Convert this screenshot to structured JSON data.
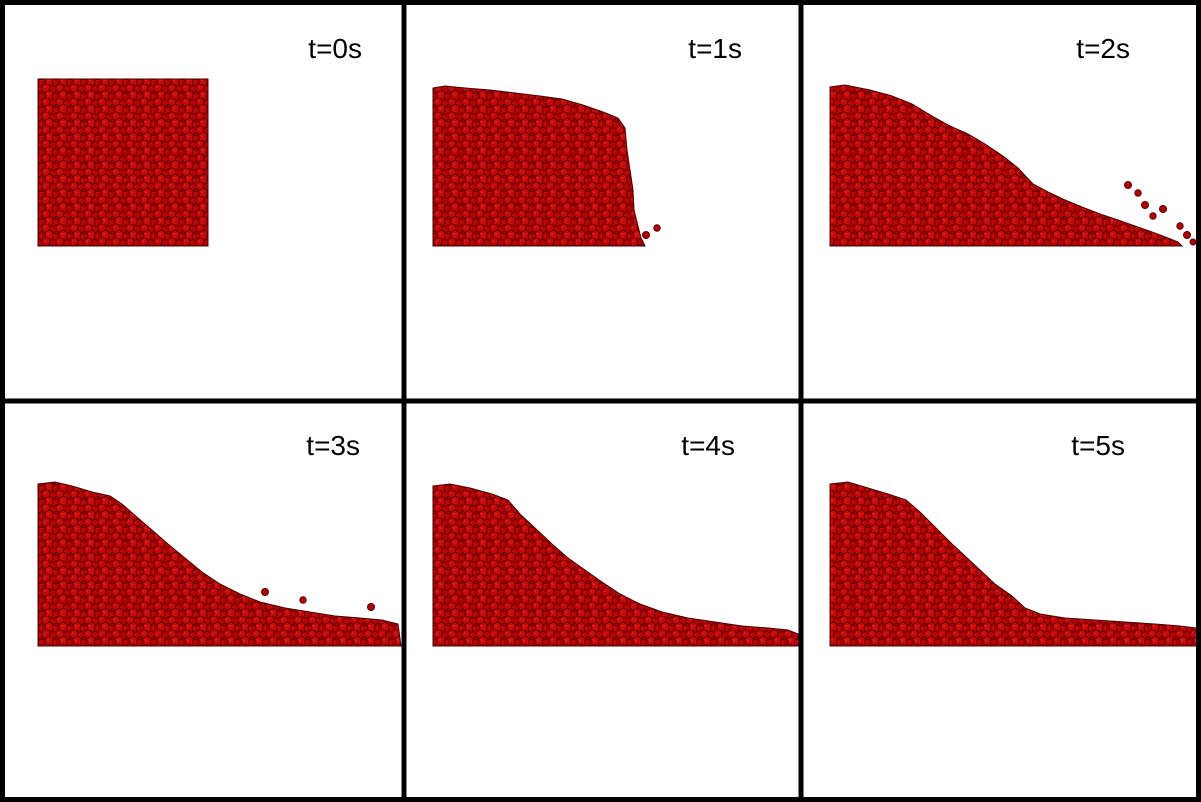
{
  "colors": {
    "particle_fill": "#b00000",
    "particle_edge": "#5a0000",
    "particle_highlight": "#e01a1a",
    "border": "#000000",
    "background": "#ffffff"
  },
  "frames": [
    {
      "label": "t=0s"
    },
    {
      "label": "t=1s"
    },
    {
      "label": "t=2s"
    },
    {
      "label": "t=3s"
    },
    {
      "label": "t=4s"
    },
    {
      "label": "t=5s"
    }
  ]
}
